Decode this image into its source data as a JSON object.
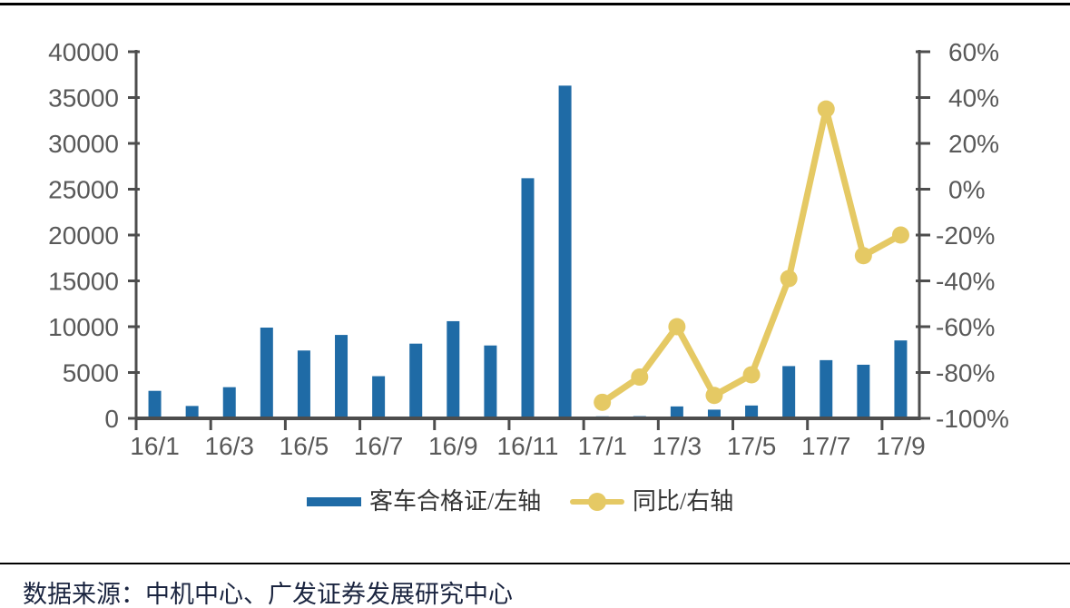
{
  "legend": {
    "bars_label": "客车合格证/左轴",
    "line_label": "同比/右轴"
  },
  "footer": {
    "source_note": "数据来源：中机中心、广发证券发展研究中心"
  },
  "colors": {
    "bar": "#1F6BA6",
    "line": "#E5C964",
    "axis": "#4D4D4D",
    "tick_label": "#595959",
    "rule": "#000000",
    "source_text": "#1B2540"
  },
  "chart_data": {
    "type": "bar+line",
    "categories": [
      "16/1",
      "16/2",
      "16/3",
      "16/4",
      "16/5",
      "16/6",
      "16/7",
      "16/8",
      "16/9",
      "16/10",
      "16/11",
      "16/12",
      "17/1",
      "17/2",
      "17/3",
      "17/4",
      "17/5",
      "17/6",
      "17/7",
      "17/8",
      "17/9"
    ],
    "x_tick_labels": [
      "16/1",
      "16/3",
      "16/5",
      "16/7",
      "16/9",
      "16/11",
      "17/1",
      "17/3",
      "17/5",
      "17/7",
      "17/9"
    ],
    "series": [
      {
        "name": "客车合格证/左轴",
        "type": "bar",
        "axis": "left",
        "values": [
          3000,
          1350,
          3400,
          9900,
          7400,
          9100,
          4600,
          8150,
          10600,
          7950,
          26200,
          36300,
          220,
          240,
          1300,
          950,
          1400,
          5700,
          6350,
          5850,
          8500
        ]
      },
      {
        "name": "同比/右轴",
        "type": "line",
        "axis": "right",
        "unit": "%",
        "values": [
          null,
          null,
          null,
          null,
          null,
          null,
          null,
          null,
          null,
          null,
          null,
          null,
          -93,
          -82,
          -60,
          -90,
          -81,
          -39,
          35,
          -29,
          -20
        ]
      }
    ],
    "left_axis": {
      "min": 0,
      "max": 40000,
      "tick_interval": 5000,
      "tick_labels": [
        "40000",
        "35000",
        "30000",
        "25000",
        "20000",
        "15000",
        "10000",
        "5000",
        "0"
      ]
    },
    "right_axis": {
      "min": -100,
      "max": 60,
      "tick_interval": 20,
      "tick_labels": [
        "60%",
        "40%",
        "20%",
        "0%",
        "-20%",
        "-40%",
        "-60%",
        "-80%",
        "-100%"
      ]
    },
    "grid": false,
    "legend_position": "bottom"
  }
}
